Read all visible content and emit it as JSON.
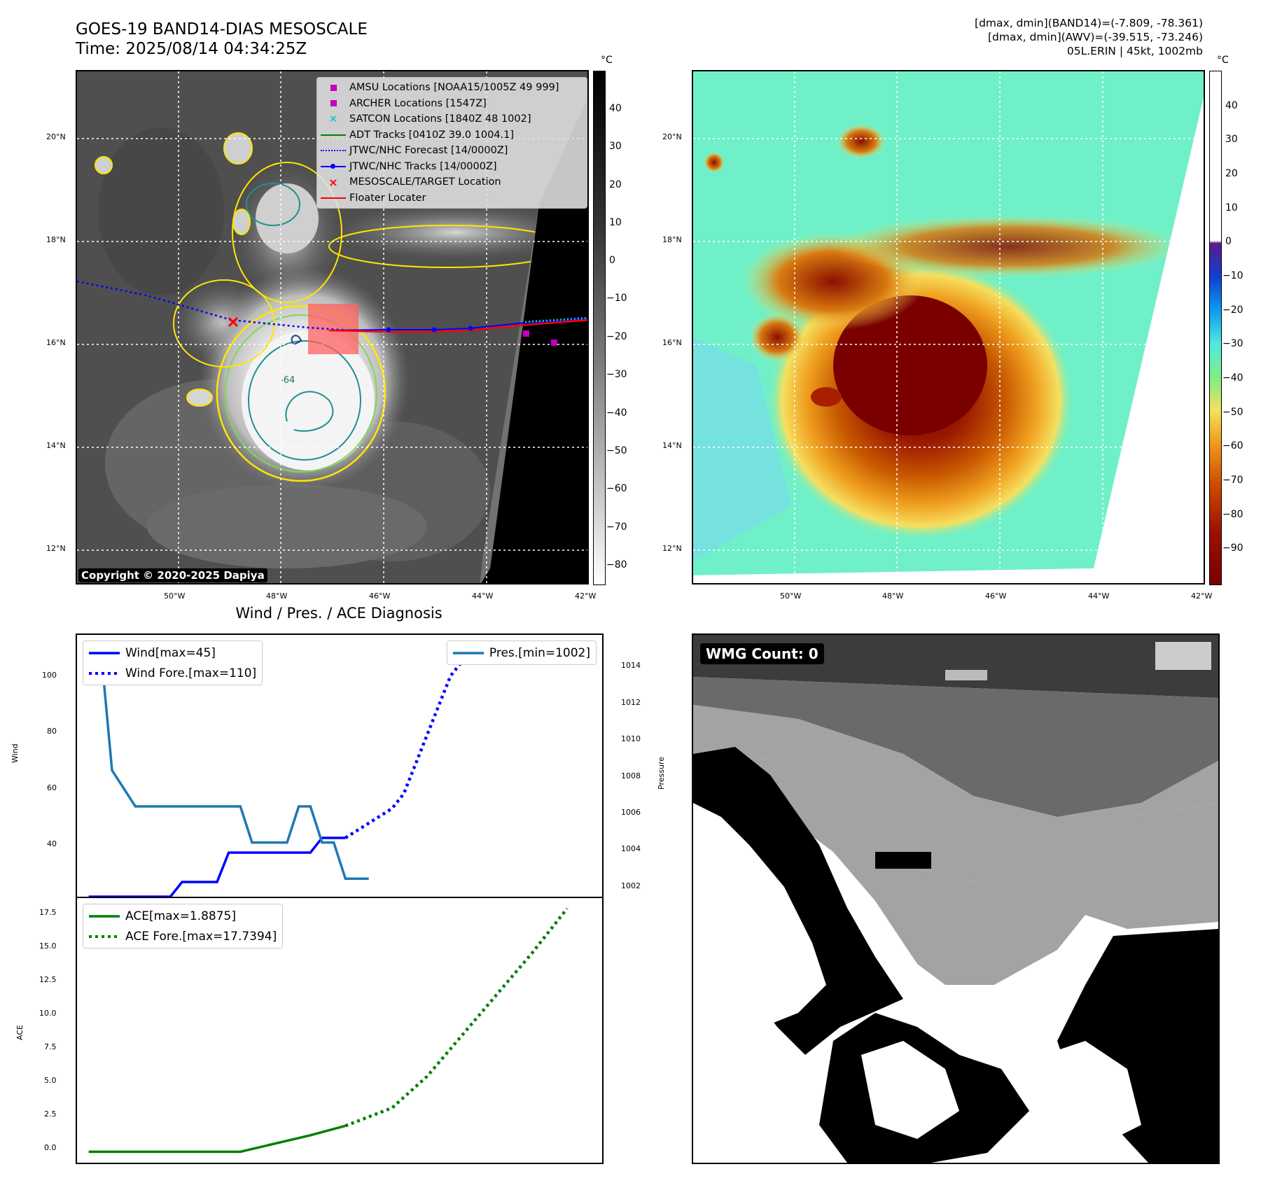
{
  "header": {
    "title": "GOES-19 BAND14-DIAS MESOSCALE",
    "time": "Time: 2025/08/14 04:34:25Z",
    "right_line1": "[dmax, dmin](BAND14)=(-7.809, -78.361)",
    "right_line2": "[dmax, dmin](AWV)=(-39.515, -73.246)",
    "right_line3": "05L.ERIN | 45kt, 1002mb"
  },
  "map": {
    "lat_labels": [
      "20°N",
      "18°N",
      "16°N",
      "14°N",
      "12°N"
    ],
    "lon_labels": [
      "50°W",
      "48°W",
      "46°W",
      "44°W",
      "42°W"
    ],
    "copyright": "Copyright © 2020-2025 Dapiya",
    "contour_label": "-64",
    "colorbar_unit": "°C",
    "ir_colorbar_ticks": [
      "40",
      "30",
      "20",
      "10",
      "0",
      "−10",
      "−20",
      "−30",
      "−40",
      "−50",
      "−60",
      "−70",
      "−80"
    ],
    "awv_colorbar_ticks": [
      "40",
      "30",
      "20",
      "10",
      "0",
      "−10",
      "−20",
      "−30",
      "−40",
      "−50",
      "−60",
      "−70",
      "−80",
      "−90"
    ],
    "legend": [
      {
        "label": "AMSU Locations [NOAA15/1005Z 49 999]",
        "symbol": "square",
        "color": "#bf00bf"
      },
      {
        "label": "ARCHER Locations [1547Z]",
        "symbol": "square",
        "color": "#bf00bf"
      },
      {
        "label": "SATCON Locations [1840Z 48 1002]",
        "symbol": "x",
        "color": "#17becf"
      },
      {
        "label": "ADT Tracks [0410Z 39.0 1004.1]",
        "symbol": "line",
        "color": "#008000"
      },
      {
        "label": "JTWC/NHC Forecast [14/0000Z]",
        "symbol": "dotted",
        "color": "#0000ff"
      },
      {
        "label": "JTWC/NHC Tracks [14/0000Z]",
        "symbol": "line-dot",
        "color": "#0000ff"
      },
      {
        "label": "MESOSCALE/TARGET Location",
        "symbol": "x",
        "color": "#ff0000"
      },
      {
        "label": "Floater Locater",
        "symbol": "line",
        "color": "#ff0000"
      }
    ]
  },
  "wmg": {
    "label": "WMG Count: 0"
  },
  "diagnosis": {
    "title": "Wind / Pres. / ACE Diagnosis",
    "wind_ylabel": "Wind",
    "pressure_ylabel": "Pressure",
    "ace_ylabel": "ACE",
    "wind_legend": [
      "Wind[max=45]",
      "Wind Fore.[max=110]"
    ],
    "pres_legend": [
      "Pres.[min=1002]"
    ],
    "ace_legend": [
      "ACE[max=1.8875]",
      "ACE Fore.[max=17.7394]"
    ],
    "wind_ticks": [
      "100",
      "80",
      "60",
      "40"
    ],
    "pres_ticks": [
      "1014",
      "1012",
      "1010",
      "1008",
      "1006",
      "1004",
      "1002"
    ],
    "ace_ticks": [
      "17.5",
      "15.0",
      "12.5",
      "10.0",
      "7.5",
      "5.0",
      "2.5",
      "0.0"
    ]
  },
  "chart_data": [
    {
      "type": "line",
      "title": "Wind / Pres. / ACE Diagnosis",
      "ylabel": "Wind",
      "ylim": [
        25,
        114
      ],
      "x": [
        0,
        1,
        2,
        3,
        4,
        5,
        6,
        7,
        8,
        9,
        10,
        11,
        12,
        13,
        14,
        15,
        16,
        17,
        18,
        19,
        20,
        21,
        22,
        23,
        24,
        25,
        26,
        27,
        28,
        29,
        30,
        31,
        32,
        33,
        34,
        35,
        36,
        37,
        38,
        39,
        40,
        41,
        42,
        43,
        44
      ],
      "series": [
        {
          "name": "Wind[max=45]",
          "color": "#0000ff",
          "style": "solid",
          "points": [
            [
              0,
              25
            ],
            [
              7,
              25
            ],
            [
              8,
              30
            ],
            [
              11,
              30
            ],
            [
              12,
              40
            ],
            [
              19,
              40
            ],
            [
              20,
              45
            ],
            [
              22,
              45
            ]
          ]
        },
        {
          "name": "Wind Fore.[max=110]",
          "color": "#0000ff",
          "style": "dotted",
          "points": [
            [
              22,
              45
            ],
            [
              26,
              55
            ],
            [
              27,
              60
            ],
            [
              28,
              70
            ],
            [
              29,
              80
            ],
            [
              30,
              90
            ],
            [
              31,
              100
            ],
            [
              32,
              105
            ],
            [
              33,
              110
            ],
            [
              35,
              110
            ],
            [
              36,
              110
            ]
          ]
        },
        {
          "name": "Pres.[min=1002]",
          "color": "#1f77b4",
          "style": "solid",
          "axis": "right",
          "points": [
            [
              0,
              1015
            ],
            [
              1,
              1015
            ],
            [
              2,
              1008
            ],
            [
              4,
              1006
            ],
            [
              13,
              1006
            ],
            [
              14,
              1004
            ],
            [
              17,
              1004
            ],
            [
              18,
              1006
            ],
            [
              19,
              1006
            ],
            [
              20,
              1004
            ],
            [
              21,
              1004
            ],
            [
              22,
              1002
            ],
            [
              24,
              1002
            ]
          ]
        }
      ],
      "y2label": "Pressure",
      "y2lim": [
        1001,
        1015.5
      ]
    },
    {
      "type": "line",
      "ylabel": "ACE",
      "ylim": [
        -0.8,
        18.5
      ],
      "series": [
        {
          "name": "ACE[max=1.8875]",
          "color": "#008000",
          "style": "solid",
          "points": [
            [
              0,
              0
            ],
            [
              13,
              0
            ],
            [
              19,
              1.2
            ],
            [
              22,
              1.89
            ]
          ]
        },
        {
          "name": "ACE Fore.[max=17.7394]",
          "color": "#008000",
          "style": "dotted",
          "points": [
            [
              22,
              1.89
            ],
            [
              26,
              3.2
            ],
            [
              29,
              5.5
            ],
            [
              32,
              8.5
            ],
            [
              35,
              11.5
            ],
            [
              38,
              14.5
            ],
            [
              41,
              17.74
            ]
          ]
        }
      ]
    }
  ]
}
